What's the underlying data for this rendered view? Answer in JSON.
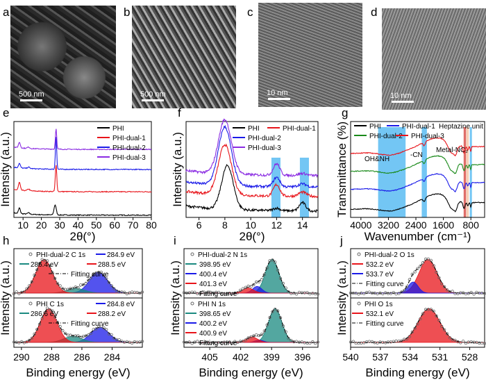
{
  "images": [
    {
      "label": "a",
      "scale": "500 nm"
    },
    {
      "label": "b",
      "scale": "500 nm"
    },
    {
      "label": "c",
      "scale": "10 nm"
    },
    {
      "label": "d",
      "scale": "10 nm"
    }
  ],
  "chart_data": [
    {
      "id": "e",
      "type": "line",
      "xlabel": "2θ(°)",
      "ylabel": "Intensity (a.u.)",
      "xlim": [
        5,
        80
      ],
      "ylim": [
        0,
        4.3
      ],
      "xticks": [
        "10",
        "20",
        "30",
        "40",
        "50",
        "60",
        "70",
        "80"
      ],
      "xtickvals": [
        10,
        20,
        30,
        40,
        50,
        60,
        70,
        80
      ],
      "series": [
        {
          "name": "PHI",
          "color": "#000000",
          "offset": 0.1,
          "peaks": [
            [
              8,
              0.25,
              0.5
            ],
            [
              27.5,
              0.45,
              0.6
            ],
            [
              13,
              0.06,
              0.6
            ]
          ]
        },
        {
          "name": "PHI-dual-1",
          "color": "#e8141a",
          "offset": 1.15,
          "peaks": [
            [
              8,
              0.35,
              0.5
            ],
            [
              28,
              1.2,
              0.4
            ],
            [
              13,
              0.08,
              0.6
            ]
          ]
        },
        {
          "name": "PHI-dual-2",
          "color": "#1a1ae8",
          "offset": 2.15,
          "peaks": [
            [
              8,
              0.2,
              0.5
            ],
            [
              28,
              1.5,
              0.35
            ],
            [
              13,
              0.06,
              0.6
            ]
          ]
        },
        {
          "name": "PHI-dual-3",
          "color": "#8a2be2",
          "offset": 3.05,
          "peaks": [
            [
              8,
              0.25,
              0.5
            ],
            [
              28,
              0.95,
              0.35
            ],
            [
              13,
              0.06,
              0.6
            ]
          ]
        }
      ]
    },
    {
      "id": "f",
      "type": "line",
      "xlabel": "2θ(°)",
      "ylabel": "Intensity (a.u.)",
      "xlim": [
        5,
        15.2
      ],
      "ylim": [
        0,
        4.6
      ],
      "xticks": [
        "6",
        "8",
        "10",
        "12",
        "14"
      ],
      "xtickvals": [
        6,
        8,
        10,
        12,
        14
      ],
      "bands": [
        [
          11.6,
          12.3
        ],
        [
          13.8,
          14.5
        ]
      ],
      "series": [
        {
          "name": "PHI",
          "color": "#000000",
          "offset": 0.3,
          "peaks": [
            [
              8.2,
              2.1,
              0.45
            ],
            [
              12,
              0.12,
              0.25
            ],
            [
              14,
              0.4,
              0.25
            ]
          ]
        },
        {
          "name": "PHI-dual-1",
          "color": "#e8141a",
          "offset": 1.0,
          "peaks": [
            [
              8,
              2.4,
              0.5
            ],
            [
              12,
              0.55,
              0.25
            ],
            [
              14,
              0.2,
              0.3
            ]
          ]
        },
        {
          "name": "PHI-dual-2",
          "color": "#1a1ae8",
          "offset": 1.45,
          "peaks": [
            [
              8,
              2.8,
              0.5
            ],
            [
              12,
              0.45,
              0.25
            ],
            [
              14,
              0.15,
              0.3
            ]
          ]
        },
        {
          "name": "PHI-dual-3",
          "color": "#8a2be2",
          "offset": 2.0,
          "peaks": [
            [
              8,
              2.6,
              0.5
            ],
            [
              12,
              0.55,
              0.25
            ],
            [
              14,
              0.1,
              0.3
            ]
          ]
        }
      ]
    },
    {
      "id": "g",
      "type": "line",
      "xlabel": "Wavenumber (cm⁻¹)",
      "ylabel": "Transmittance (%)",
      "xlim": [
        4300,
        400
      ],
      "ylim": [
        0,
        4.8
      ],
      "xticks": [
        "4000",
        "3200",
        "2400",
        "1600",
        "800"
      ],
      "xtickvals": [
        4000,
        3200,
        2400,
        1600,
        800
      ],
      "bands": [
        [
          3500,
          2700,
          "#5bbcf2"
        ],
        [
          2230,
          2080,
          "#5bbcf2"
        ],
        [
          1010,
          940,
          "#d9534f"
        ],
        [
          930,
          860,
          "#f5c7a8"
        ],
        [
          830,
          770,
          "#5bbcf2"
        ]
      ],
      "annotations": [
        "OH&NH",
        "-CN",
        "Metal-NC₂",
        "Heptazine unit"
      ],
      "series": [
        {
          "name": "PHI",
          "color": "#000000",
          "offset": 0.4
        },
        {
          "name": "PHI-dual-1",
          "color": "#1a1ae8",
          "offset": 1.4
        },
        {
          "name": "PHI-dual-2",
          "color": "#1a8a1a",
          "offset": 2.3
        },
        {
          "name": "PHI-dual-3",
          "color": "#e8141a",
          "offset": 3.2
        }
      ]
    },
    {
      "id": "h",
      "type": "area",
      "xlabel": "Binding energy (eV)",
      "ylabel": "Intensity (a.u.)",
      "xlim": [
        290.5,
        282
      ],
      "xticks": [
        "290",
        "288",
        "286",
        "284"
      ],
      "xtickvals": [
        290,
        288,
        286,
        284
      ],
      "subplots": [
        {
          "title": "PHI-dual-2  C 1s",
          "components": [
            {
              "label": "284.9 eV",
              "center": 284.9,
              "height": 0.62,
              "width": 0.6,
              "color": "#1a1ae8"
            },
            {
              "label": "286.4 eV",
              "center": 286.4,
              "height": 0.14,
              "width": 0.6,
              "color": "#1a8a80"
            },
            {
              "label": "288.5 eV",
              "center": 288.5,
              "height": 1.0,
              "width": 0.55,
              "color": "#e8141a"
            }
          ],
          "fit": "Fitting curve"
        },
        {
          "title": "PHI  C 1s",
          "components": [
            {
              "label": "284.8 eV",
              "center": 284.8,
              "height": 0.45,
              "width": 0.6,
              "color": "#1a1ae8"
            },
            {
              "label": "286.6 eV",
              "center": 286.6,
              "height": 0.18,
              "width": 0.6,
              "color": "#1a8a80"
            },
            {
              "label": "288.2 eV",
              "center": 288.2,
              "height": 1.0,
              "width": 0.55,
              "color": "#e8141a"
            }
          ],
          "fit": "Fitting curve"
        }
      ]
    },
    {
      "id": "i",
      "type": "area",
      "xlabel": "Binding energy (eV)",
      "ylabel": "Intensity (a.u.)",
      "xlim": [
        407.5,
        394.5
      ],
      "xticks": [
        "405",
        "402",
        "399",
        "396"
      ],
      "xtickvals": [
        405,
        402,
        399,
        396
      ],
      "subplots": [
        {
          "title": "PHI-dual-2  N 1s",
          "components": [
            {
              "label": "398.95 eV",
              "center": 398.95,
              "height": 1.0,
              "width": 0.65,
              "color": "#1a8a80"
            },
            {
              "label": "400.4 eV",
              "center": 400.4,
              "height": 0.2,
              "width": 0.45,
              "color": "#1a1ae8"
            },
            {
              "label": "401.3 eV",
              "center": 401.3,
              "height": 0.15,
              "width": 0.55,
              "color": "#e8141a"
            }
          ],
          "fit": "Fitting curve"
        },
        {
          "title": "PHI  N 1s",
          "components": [
            {
              "label": "398.65 eV",
              "center": 398.65,
              "height": 1.0,
              "width": 0.65,
              "color": "#1a8a80"
            },
            {
              "label": "400.2 eV",
              "center": 400.2,
              "height": 0.07,
              "width": 0.4,
              "color": "#1a1ae8"
            },
            {
              "label": "400.9 eV",
              "center": 400.9,
              "height": 0.16,
              "width": 0.55,
              "color": "#e8141a"
            }
          ],
          "fit": "Fitting curve"
        }
      ]
    },
    {
      "id": "j",
      "type": "area",
      "xlabel": "Binding energy (eV)",
      "ylabel": "Intensity (a.u.)",
      "xlim": [
        540,
        526.5
      ],
      "xticks": [
        "540",
        "537",
        "534",
        "531",
        "528"
      ],
      "xtickvals": [
        540,
        537,
        534,
        531,
        528
      ],
      "subplots": [
        {
          "title": "PHI-dual-2  O 1s",
          "components": [
            {
              "label": "532.2 eV",
              "center": 532.2,
              "height": 1.0,
              "width": 0.9,
              "color": "#e8141a"
            },
            {
              "label": "533.7 eV",
              "center": 533.7,
              "height": 0.33,
              "width": 0.5,
              "color": "#1a1ae8"
            }
          ],
          "fit": "Fitting curve"
        },
        {
          "title": "PHI  O 1s",
          "components": [
            {
              "label": "532.1 eV",
              "center": 532.1,
              "height": 1.0,
              "width": 1.1,
              "color": "#e8141a"
            }
          ],
          "fit": "Fitting curve"
        }
      ]
    }
  ]
}
